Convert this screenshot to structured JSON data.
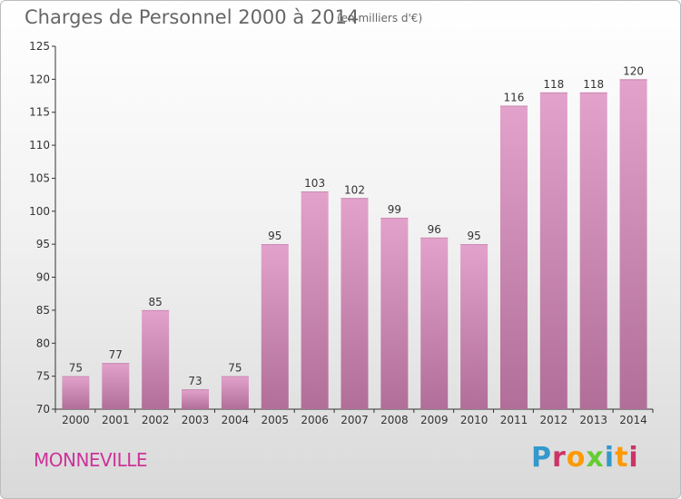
{
  "header": {
    "title": "Charges de Personnel 2000 à 2014",
    "subtitle": "(en milliers d'€)"
  },
  "footer": {
    "city": "MONNEVILLE",
    "brand": "Proxiti",
    "brand_colors": [
      "#3399cc",
      "#cc3366",
      "#ff9900",
      "#66cc33",
      "#3399cc",
      "#ff9900",
      "#cc3366"
    ]
  },
  "colors": {
    "bar_top": "#e2a2cb",
    "bar_bottom": "#b06e98",
    "axis": "#333333",
    "grid": "#cccccc",
    "text": "#333333"
  },
  "chart_data": {
    "type": "bar",
    "title": "Charges de Personnel 2000 à 2014",
    "subtitle": "(en milliers d'€)",
    "categories": [
      "2000",
      "2001",
      "2002",
      "2003",
      "2004",
      "2005",
      "2006",
      "2007",
      "2008",
      "2009",
      "2010",
      "2011",
      "2012",
      "2013",
      "2014"
    ],
    "values": [
      75,
      77,
      85,
      73,
      75,
      95,
      103,
      102,
      99,
      96,
      95,
      116,
      118,
      118,
      120
    ],
    "ylim": [
      70,
      125
    ],
    "yticks": [
      70,
      75,
      80,
      85,
      90,
      95,
      100,
      105,
      110,
      115,
      120,
      125
    ],
    "grid": false,
    "xlabel": "",
    "ylabel": ""
  }
}
